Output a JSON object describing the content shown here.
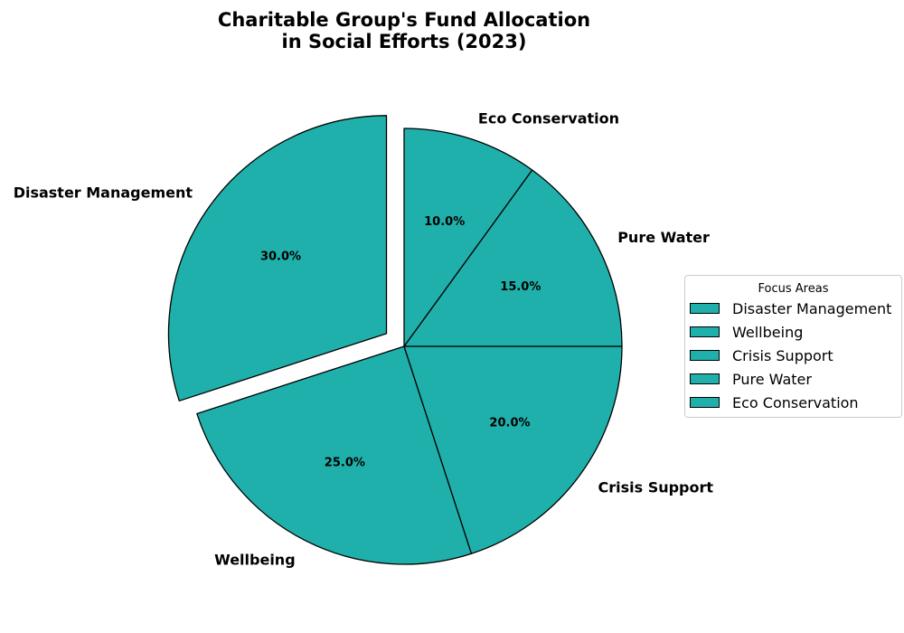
{
  "chart_data": {
    "type": "pie",
    "title": "Charitable Group's Fund Allocation\nin Social Efforts (2023)",
    "slices": [
      {
        "label": "Disaster Management",
        "value": 30,
        "pct_label": "30.0%",
        "exploded": true
      },
      {
        "label": "Wellbeing",
        "value": 25,
        "pct_label": "25.0%",
        "exploded": false
      },
      {
        "label": "Crisis Support",
        "value": 20,
        "pct_label": "20.0%",
        "exploded": false
      },
      {
        "label": "Pure Water",
        "value": 15,
        "pct_label": "15.0%",
        "exploded": false
      },
      {
        "label": "Eco Conservation",
        "value": 10,
        "pct_label": "10.0%",
        "exploded": false
      }
    ],
    "start_angle": 90,
    "direction": "counterclockwise",
    "colors": {
      "slice_fill": "#20b0ab",
      "slice_edge": "#000000"
    },
    "legend": {
      "title": "Focus Areas",
      "placement": "center-right",
      "entries": [
        "Disaster Management",
        "Wellbeing",
        "Crisis Support",
        "Pure Water",
        "Eco Conservation"
      ]
    }
  }
}
